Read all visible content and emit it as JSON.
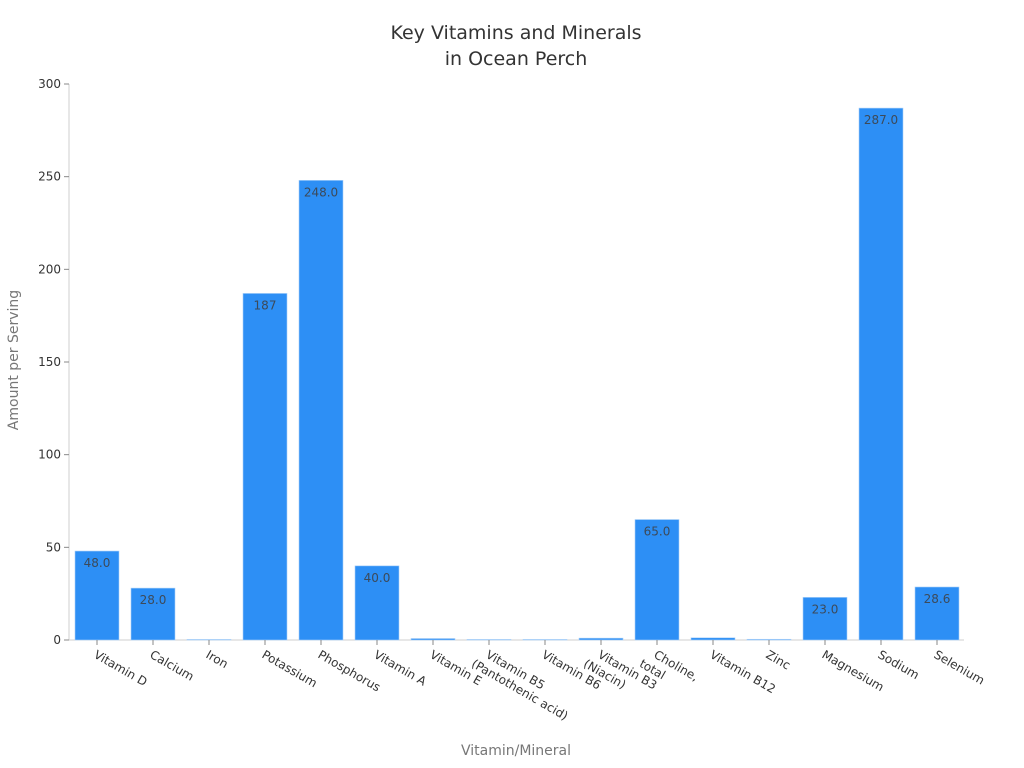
{
  "chart_data": {
    "type": "bar",
    "title_lines": [
      "Key Vitamins and Minerals",
      "in Ocean Perch"
    ],
    "title": "Key Vitamins and Minerals in Ocean Perch",
    "xlabel": "Vitamin/Mineral",
    "ylabel": "Amount per Serving",
    "ylim": [
      0,
      300
    ],
    "yticks": [
      0,
      50,
      100,
      150,
      200,
      250,
      300
    ],
    "grid": false,
    "legend": null,
    "bar_color": "#2d8ff5",
    "categories": [
      [
        "Vitamin D"
      ],
      [
        "Calcium"
      ],
      [
        "Iron"
      ],
      [
        "Potassium"
      ],
      [
        "Phosphorus"
      ],
      [
        "Vitamin A"
      ],
      [
        "Vitamin E"
      ],
      [
        "Vitamin B5",
        "(Pantothenic acid)"
      ],
      [
        "Vitamin B6"
      ],
      [
        "Vitamin B3",
        "(Niacin)"
      ],
      [
        "Choline,",
        "total"
      ],
      [
        "Vitamin B12"
      ],
      [
        "Zinc"
      ],
      [
        "Magnesium"
      ],
      [
        "Sodium"
      ],
      [
        "Selenium"
      ]
    ],
    "values": [
      48.0,
      28.0,
      0.2,
      187,
      248.0,
      40.0,
      0.8,
      0.3,
      0.1,
      1.0,
      65.0,
      1.2,
      0.4,
      23.0,
      287.0,
      28.6
    ],
    "value_labels": [
      "48.0",
      "28.0",
      "",
      "187",
      "248.0",
      "40.0",
      "",
      "",
      "",
      "",
      "65.0",
      "",
      "",
      "23.0",
      "287.0",
      "28.6"
    ]
  }
}
